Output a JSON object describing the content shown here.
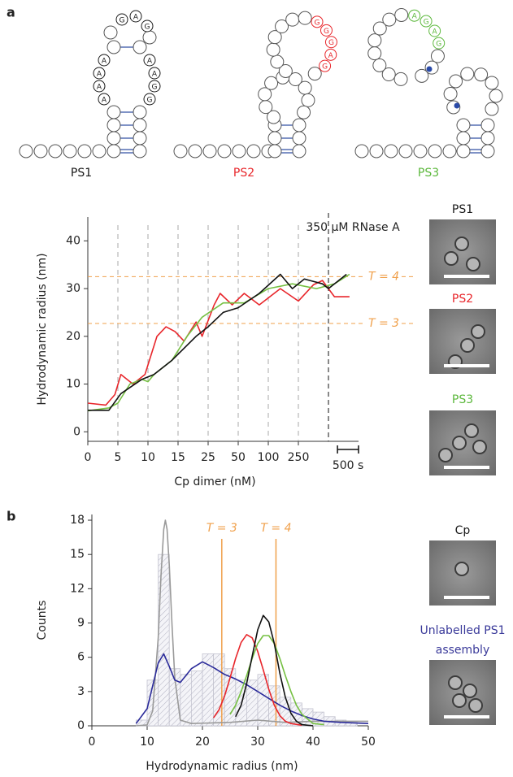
{
  "panel_labels": [
    "a",
    "b"
  ],
  "structures": [
    {
      "label": "PS1",
      "color": "#1a1a1a",
      "letters": [
        "G",
        "A",
        "G",
        "A",
        "A",
        "A",
        "A",
        "G",
        "G",
        "A",
        "A"
      ]
    },
    {
      "label": "PS2",
      "color": "#e8262b",
      "letters": [
        "G",
        "G",
        "G",
        "A",
        "G"
      ]
    },
    {
      "label": "PS3",
      "color": "#5cb83c",
      "letters": [
        "A",
        "G",
        "A",
        "G"
      ]
    }
  ],
  "micrographs": [
    {
      "label_lines": [
        "PS1"
      ],
      "color": "#1a1a1a"
    },
    {
      "label_lines": [
        "PS2"
      ],
      "color": "#e8262b"
    },
    {
      "label_lines": [
        "PS3"
      ],
      "color": "#5cb83c"
    },
    {
      "label_lines": [
        "Cp"
      ],
      "color": "#1a1a1a"
    },
    {
      "label_lines": [
        "Unlabelled PS1",
        "assembly"
      ],
      "color": "#3a3a9a"
    }
  ],
  "chart_data": [
    {
      "type": "line",
      "ylabel": "Hydrodynamic radius (nm)",
      "xlabel": "Cp dimer (nM)",
      "xlim": [
        0,
        9
      ],
      "xticks": [
        0,
        {
          "value": 1,
          "label": "5"
        },
        {
          "value": 2,
          "label": "10"
        },
        {
          "value": 3,
          "label": "15"
        },
        {
          "value": 4,
          "label": "25"
        },
        {
          "value": 5,
          "label": "50"
        },
        {
          "value": 6,
          "label": "100"
        },
        {
          "value": 7,
          "label": "250"
        }
      ],
      "xgrid": true,
      "ylim": [
        -2,
        45
      ],
      "yticks": [
        0,
        10,
        20,
        30,
        40
      ],
      "h_lines": [
        {
          "value": 32.5,
          "label": "T = 4"
        },
        {
          "value": 22.7,
          "label": "T = 3"
        }
      ],
      "h_line_color": "#f0a04b",
      "v_line": {
        "value": 8,
        "label": "350 μM RNase A"
      },
      "scale_bar": {
        "value": 0.7,
        "label": "500 s"
      },
      "series": [
        {
          "color": "#e8262b",
          "x": [
            0,
            0.6,
            0.9,
            1.1,
            1.5,
            1.9,
            2.3,
            2.6,
            2.9,
            3.2,
            3.6,
            3.8,
            4.2,
            4.4,
            4.8,
            5.2,
            5.7,
            6.4,
            7.0,
            7.5,
            7.8,
            8.2,
            8.7
          ],
          "values": [
            6,
            5.6,
            7.8,
            12,
            10,
            12,
            20,
            22,
            21,
            19,
            23,
            20,
            26.6,
            29,
            26.6,
            29,
            26.6,
            30,
            27.4,
            30.8,
            31.7,
            28.3,
            28.3
          ]
        },
        {
          "color": "#76c043",
          "x": [
            0,
            0.7,
            1.0,
            1.4,
            1.8,
            2.0,
            2.2,
            2.8,
            3.3,
            3.8,
            4.5,
            5.2,
            6.0,
            6.8,
            7.6,
            8.2,
            8.7
          ],
          "values": [
            4.4,
            5,
            6,
            10,
            11,
            10.5,
            12,
            15,
            20,
            24,
            27,
            27,
            30,
            31,
            30,
            31,
            33
          ]
        },
        {
          "color": "#111111",
          "x": [
            0,
            0.7,
            1.1,
            1.8,
            2.2,
            2.8,
            3.6,
            4.0,
            4.5,
            5.0,
            5.7,
            6.4,
            6.8,
            7.2,
            7.8,
            8.0,
            8.6
          ],
          "values": [
            4.5,
            4.5,
            8,
            11,
            12,
            15,
            20,
            22,
            25,
            26,
            29,
            33,
            30,
            32,
            31,
            30,
            33
          ]
        }
      ]
    },
    {
      "type": "histogram",
      "ylabel": "Counts",
      "xlabel": "Hydrodynamic radius (nm)",
      "xlim": [
        0,
        50
      ],
      "xticks": [
        0,
        10,
        20,
        30,
        40,
        50
      ],
      "ylim": [
        0,
        18.5
      ],
      "yticks": [
        0,
        3,
        6,
        9,
        12,
        15,
        18
      ],
      "bins": [
        8,
        10,
        12,
        14,
        16,
        18,
        20,
        22,
        24,
        26,
        28,
        30,
        32,
        34,
        36,
        38,
        40,
        42,
        44,
        46,
        48
      ],
      "counts": [
        0.5,
        4,
        15,
        5,
        4.5,
        4.8,
        6.3,
        6.3,
        5,
        4,
        4,
        4.5,
        3.5,
        2.5,
        2,
        1.5,
        1.2,
        0.8,
        0.5,
        0.3
      ],
      "bar_color": "#c4c4d0",
      "v_lines": [
        {
          "value": 23.5,
          "label": "T = 3"
        },
        {
          "value": 33.3,
          "label": "T = 4"
        }
      ],
      "v_line_color": "#f0a04b",
      "series": [
        {
          "color": "#9a9a9a",
          "x": [
            8,
            10,
            11,
            12,
            12.5,
            13,
            13.3,
            13.6,
            14,
            14.5,
            15,
            16,
            18,
            25,
            30,
            35,
            40,
            50
          ],
          "values": [
            0,
            0.08,
            1.3,
            7.7,
            13.1,
            17.2,
            18,
            17.2,
            14.1,
            8.8,
            4.2,
            0.5,
            0.2,
            0.3,
            0.5,
            0.3,
            0.4,
            0.4
          ]
        },
        {
          "color": "#2b2b9a",
          "x": [
            8,
            10,
            11,
            12,
            13,
            14,
            15,
            16,
            18,
            20,
            22,
            24,
            26,
            28,
            30,
            32,
            34,
            36,
            38,
            40,
            42,
            45,
            50
          ],
          "values": [
            0.2,
            1.5,
            3.5,
            5.5,
            6.3,
            5.2,
            4.0,
            3.8,
            5.0,
            5.6,
            5.1,
            4.5,
            4.1,
            3.6,
            3.0,
            2.4,
            1.8,
            1.3,
            0.9,
            0.6,
            0.4,
            0.3,
            0.2
          ]
        },
        {
          "color": "#e8262b",
          "x": [
            22,
            23,
            24,
            25,
            26,
            27,
            28,
            29,
            30,
            31,
            32,
            33,
            34,
            35,
            36,
            38
          ],
          "values": [
            0.7,
            1.4,
            2.6,
            4.2,
            5.9,
            7.3,
            7.98,
            7.7,
            6.5,
            4.9,
            3.2,
            1.8,
            0.9,
            0.4,
            0.2,
            0.05
          ]
        },
        {
          "color": "#76c043",
          "x": [
            25,
            26,
            27,
            28,
            29,
            30,
            31,
            32,
            33,
            34,
            35,
            36,
            37,
            38,
            40,
            42
          ],
          "values": [
            1.0,
            1.8,
            3.0,
            4.4,
            5.9,
            7.2,
            7.9,
            7.9,
            7.2,
            5.9,
            4.4,
            3.0,
            1.8,
            1.0,
            0.2,
            0.1
          ]
        },
        {
          "color": "#111111",
          "x": [
            26,
            27,
            28,
            29,
            30,
            31,
            32,
            33,
            34,
            35,
            36,
            37,
            38,
            40
          ],
          "values": [
            0.8,
            1.8,
            3.7,
            6.1,
            8.4,
            9.66,
            9.1,
            7.2,
            4.6,
            2.5,
            1.1,
            0.4,
            0.1,
            0
          ]
        }
      ]
    }
  ]
}
